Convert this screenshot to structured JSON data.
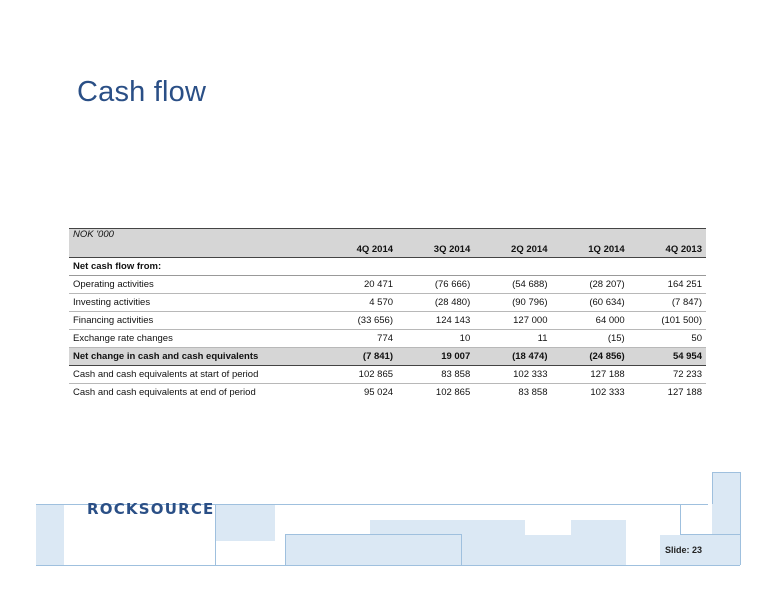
{
  "slide": {
    "title": "Cash flow",
    "logo_text": "ROCKSOURCE",
    "slide_label": "Slide: 23"
  },
  "table": {
    "unit_label": "NOK '000",
    "columns": [
      "4Q 2014",
      "3Q 2014",
      "2Q 2014",
      "1Q 2014",
      "4Q 2013"
    ],
    "section_label": "Net cash flow from:",
    "rows": [
      {
        "label": "Operating activities",
        "values": [
          "20 471",
          "(76 666)",
          "(54 688)",
          "(28 207)",
          "164 251"
        ]
      },
      {
        "label": "Investing activities",
        "values": [
          "4 570",
          "(28 480)",
          "(90 796)",
          "(60 634)",
          "(7 847)"
        ]
      },
      {
        "label": "Financing activities",
        "values": [
          "(33 656)",
          "124 143",
          "127 000",
          "64 000",
          "(101 500)"
        ]
      },
      {
        "label": "Exchange rate changes",
        "values": [
          "774",
          "10",
          "11",
          "(15)",
          "50"
        ]
      }
    ],
    "total": {
      "label": "Net change in cash and cash equivalents",
      "values": [
        "(7 841)",
        "19 007",
        "(18 474)",
        "(24 856)",
        "54 954"
      ]
    },
    "balances": [
      {
        "label": "Cash and cash equivalents at start of period",
        "values": [
          "102 865",
          "83 858",
          "102 333",
          "127 188",
          "72 233"
        ]
      },
      {
        "label": "Cash and cash equivalents at end of period",
        "values": [
          "95 024",
          "102 865",
          "83 858",
          "102 333",
          "127 188"
        ]
      }
    ]
  }
}
